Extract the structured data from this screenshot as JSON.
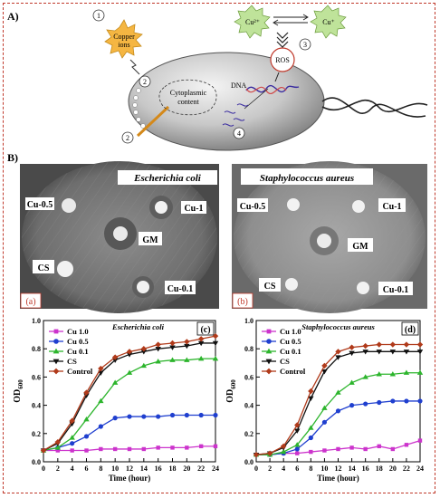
{
  "panel_a": {
    "label": "A)",
    "copper_ions": [
      "Copper",
      "ions"
    ],
    "cu2": "Cu²⁺",
    "cu1": "Cu⁺",
    "ros": "ROS",
    "dna": "DNA",
    "cytoplasm": [
      "Cytoplasmic",
      "content"
    ],
    "steps": [
      "1",
      "2",
      "2",
      "3",
      "4"
    ]
  },
  "panel_b": {
    "label": "B)",
    "plates": [
      {
        "organism": "Escherichia coli",
        "tag": "(a)",
        "labels": [
          "Cu-0.5",
          "Cu-1",
          "GM",
          "CS",
          "Cu-0.1"
        ]
      },
      {
        "organism": "Staphylococcus aureus",
        "tag": "(b)",
        "labels": [
          "Cu-0.5",
          "Cu-1",
          "GM",
          "CS",
          "Cu-0.1"
        ]
      }
    ]
  },
  "chart_data": [
    {
      "type": "line",
      "tag": "(c)",
      "title": "Escherichia coli",
      "xlabel": "Time (hour)",
      "ylabel": "OD600",
      "ylabel_main": "OD",
      "ylabel_sub": "600",
      "xlim": [
        0,
        24
      ],
      "ylim": [
        0.0,
        1.0
      ],
      "x": [
        0,
        2,
        4,
        6,
        8,
        10,
        12,
        14,
        16,
        18,
        20,
        22,
        24
      ],
      "xticks": [
        "0",
        "2",
        "4",
        "6",
        "8",
        "10",
        "12",
        "14",
        "16",
        "18",
        "20",
        "22",
        "24"
      ],
      "yticks": [
        "0.0",
        "0.2",
        "0.4",
        "0.6",
        "0.8",
        "1.0"
      ],
      "legend_position": "top-left",
      "series": [
        {
          "name": "Cu 1.0",
          "color": "#cc33cc",
          "marker": "square",
          "values": [
            0.08,
            0.08,
            0.08,
            0.08,
            0.09,
            0.09,
            0.09,
            0.09,
            0.1,
            0.1,
            0.1,
            0.11,
            0.11
          ]
        },
        {
          "name": "Cu 0.5",
          "color": "#1f3fcf",
          "marker": "circle",
          "values": [
            0.08,
            0.1,
            0.13,
            0.18,
            0.25,
            0.31,
            0.32,
            0.32,
            0.32,
            0.33,
            0.33,
            0.33,
            0.33
          ]
        },
        {
          "name": "Cu 0.1",
          "color": "#2db52d",
          "marker": "triangle-up",
          "values": [
            0.08,
            0.1,
            0.17,
            0.3,
            0.43,
            0.56,
            0.63,
            0.68,
            0.71,
            0.72,
            0.72,
            0.73,
            0.73
          ]
        },
        {
          "name": "CS",
          "color": "#111111",
          "marker": "triangle-down",
          "values": [
            0.08,
            0.13,
            0.27,
            0.47,
            0.63,
            0.72,
            0.76,
            0.78,
            0.8,
            0.81,
            0.82,
            0.84,
            0.84
          ]
        },
        {
          "name": "Control",
          "color": "#b03a1a",
          "marker": "diamond",
          "values": [
            0.08,
            0.14,
            0.29,
            0.49,
            0.66,
            0.74,
            0.78,
            0.8,
            0.83,
            0.84,
            0.85,
            0.87,
            0.89
          ]
        }
      ]
    },
    {
      "type": "line",
      "tag": "(d)",
      "title": "Staphylococcus aureus",
      "xlabel": "Time (hour)",
      "ylabel": "OD600",
      "ylabel_main": "OD",
      "ylabel_sub": "600",
      "xlim": [
        0,
        24
      ],
      "ylim": [
        0.0,
        1.0
      ],
      "x": [
        0,
        2,
        4,
        6,
        8,
        10,
        12,
        14,
        16,
        18,
        20,
        22,
        24
      ],
      "xticks": [
        "0",
        "2",
        "4",
        "6",
        "8",
        "10",
        "12",
        "14",
        "16",
        "18",
        "20",
        "22",
        "24"
      ],
      "yticks": [
        "0.0",
        "0.2",
        "0.4",
        "0.6",
        "0.8",
        "1.0"
      ],
      "legend_position": "top-left",
      "series": [
        {
          "name": "Cu 1.0",
          "color": "#cc33cc",
          "marker": "square",
          "values": [
            0.05,
            0.05,
            0.06,
            0.06,
            0.07,
            0.08,
            0.09,
            0.1,
            0.09,
            0.11,
            0.09,
            0.12,
            0.15
          ]
        },
        {
          "name": "Cu 0.5",
          "color": "#1f3fcf",
          "marker": "circle",
          "values": [
            0.05,
            0.05,
            0.06,
            0.09,
            0.17,
            0.28,
            0.36,
            0.4,
            0.41,
            0.42,
            0.43,
            0.43,
            0.43
          ]
        },
        {
          "name": "Cu 0.1",
          "color": "#2db52d",
          "marker": "triangle-up",
          "values": [
            0.05,
            0.05,
            0.07,
            0.12,
            0.24,
            0.38,
            0.49,
            0.56,
            0.6,
            0.62,
            0.62,
            0.63,
            0.63
          ]
        },
        {
          "name": "CS",
          "color": "#111111",
          "marker": "triangle-down",
          "values": [
            0.05,
            0.06,
            0.1,
            0.22,
            0.45,
            0.64,
            0.74,
            0.77,
            0.78,
            0.78,
            0.78,
            0.78,
            0.78
          ]
        },
        {
          "name": "Control",
          "color": "#b03a1a",
          "marker": "diamond",
          "values": [
            0.05,
            0.06,
            0.11,
            0.26,
            0.5,
            0.68,
            0.78,
            0.81,
            0.82,
            0.83,
            0.83,
            0.83,
            0.83
          ]
        }
      ]
    }
  ]
}
